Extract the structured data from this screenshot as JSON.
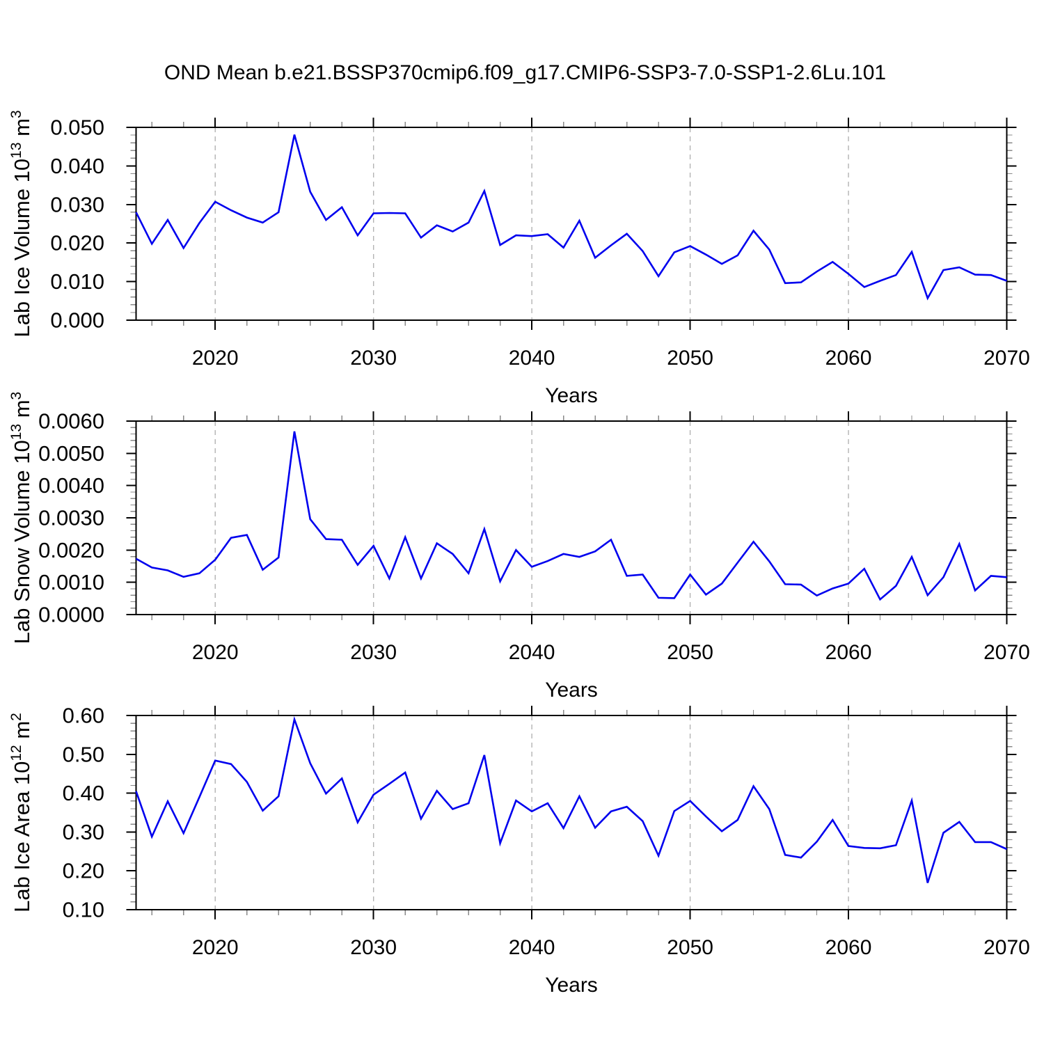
{
  "title": "OND Mean b.e21.BSSP370cmip6.f09_g17.CMIP6-SSP3-7.0-SSP1-2.6Lu.101",
  "colors": {
    "line": "#0000ee",
    "grid": "#b3b3b3",
    "axis": "#000000",
    "minor_tick": "#888888"
  },
  "chart_data": [
    {
      "type": "line",
      "name": "lab-ice-volume",
      "ylabel": "Lab Ice Volume 10^13 m^3",
      "ylabel_parts": [
        {
          "t": "Lab Ice Volume 10"
        },
        {
          "t": "13",
          "sup": true
        },
        {
          "t": " m"
        },
        {
          "t": "3",
          "sup": true
        }
      ],
      "xlabel": "Years",
      "x_range": [
        2015,
        2070
      ],
      "x_step": 1,
      "x_major_ticks": [
        2020,
        2030,
        2040,
        2050,
        2060,
        2070
      ],
      "x_minor_step": 2,
      "x_gridlines": [
        2020,
        2030,
        2040,
        2050,
        2060
      ],
      "ylim": [
        0.0,
        0.05
      ],
      "y_major_ticks": [
        0.0,
        0.01,
        0.02,
        0.03,
        0.04,
        0.05
      ],
      "y_tick_labels": [
        "0.000",
        "0.010",
        "0.020",
        "0.030",
        "0.040",
        "0.050"
      ],
      "y_minor_step": 0.002,
      "values": [
        0.028,
        0.0198,
        0.026,
        0.0187,
        0.0252,
        0.0307,
        0.0285,
        0.0266,
        0.0253,
        0.028,
        0.0481,
        0.0333,
        0.026,
        0.0293,
        0.022,
        0.0277,
        0.0278,
        0.0277,
        0.0214,
        0.0246,
        0.023,
        0.0253,
        0.0335,
        0.0195,
        0.022,
        0.0218,
        0.0223,
        0.0188,
        0.0258,
        0.0162,
        0.0194,
        0.0224,
        0.0179,
        0.0114,
        0.0176,
        0.0192,
        0.017,
        0.0146,
        0.0168,
        0.0232,
        0.0183,
        0.0096,
        0.0098,
        0.0126,
        0.0151,
        0.012,
        0.0086,
        0.0102,
        0.0117,
        0.0177,
        0.0057,
        0.013,
        0.0137,
        0.0118,
        0.0117,
        0.0102
      ]
    },
    {
      "type": "line",
      "name": "lab-snow-volume",
      "ylabel": "Lab Snow Volume 10^13 m^3",
      "ylabel_parts": [
        {
          "t": "Lab Snow Volume 10"
        },
        {
          "t": "13",
          "sup": true
        },
        {
          "t": " m"
        },
        {
          "t": "3",
          "sup": true
        }
      ],
      "xlabel": "Years",
      "x_range": [
        2015,
        2070
      ],
      "x_step": 1,
      "x_major_ticks": [
        2020,
        2030,
        2040,
        2050,
        2060,
        2070
      ],
      "x_minor_step": 2,
      "x_gridlines": [
        2020,
        2030,
        2040,
        2050,
        2060
      ],
      "ylim": [
        0.0,
        0.006
      ],
      "y_major_ticks": [
        0.0,
        0.001,
        0.002,
        0.003,
        0.004,
        0.005,
        0.006
      ],
      "y_tick_labels": [
        "0.0000",
        "0.0010",
        "0.0020",
        "0.0030",
        "0.0040",
        "0.0050",
        "0.0060"
      ],
      "y_minor_step": 0.0002,
      "values": [
        0.00173,
        0.00146,
        0.00137,
        0.00117,
        0.00128,
        0.0017,
        0.00238,
        0.00247,
        0.00139,
        0.00177,
        0.00568,
        0.00296,
        0.00234,
        0.00232,
        0.00154,
        0.00213,
        0.00112,
        0.0024,
        0.00112,
        0.00221,
        0.00188,
        0.00128,
        0.00265,
        0.00103,
        0.002,
        0.00148,
        0.00166,
        0.00188,
        0.00179,
        0.00196,
        0.00232,
        0.0012,
        0.00124,
        0.00052,
        0.00051,
        0.00124,
        0.00062,
        0.00096,
        0.00161,
        0.00226,
        0.00165,
        0.00094,
        0.00093,
        0.00059,
        0.00081,
        0.00096,
        0.00142,
        0.00047,
        0.00089,
        0.00179,
        0.0006,
        0.00116,
        0.00219,
        0.00075,
        0.0012,
        0.00116
      ]
    },
    {
      "type": "line",
      "name": "lab-ice-area",
      "ylabel": "Lab Ice Area 10^12 m^2",
      "ylabel_parts": [
        {
          "t": "Lab Ice Area 10"
        },
        {
          "t": "12",
          "sup": true
        },
        {
          "t": " m"
        },
        {
          "t": "2",
          "sup": true
        }
      ],
      "xlabel": "Years",
      "x_range": [
        2015,
        2070
      ],
      "x_step": 1,
      "x_major_ticks": [
        2020,
        2030,
        2040,
        2050,
        2060,
        2070
      ],
      "x_minor_step": 2,
      "x_gridlines": [
        2020,
        2030,
        2040,
        2050,
        2060
      ],
      "ylim": [
        0.1,
        0.6
      ],
      "y_major_ticks": [
        0.1,
        0.2,
        0.3,
        0.4,
        0.5,
        0.6
      ],
      "y_tick_labels": [
        "0.10",
        "0.20",
        "0.30",
        "0.40",
        "0.50",
        "0.60"
      ],
      "y_minor_step": 0.02,
      "values": [
        0.405,
        0.288,
        0.379,
        0.297,
        0.39,
        0.484,
        0.475,
        0.429,
        0.355,
        0.392,
        0.59,
        0.477,
        0.399,
        0.438,
        0.325,
        0.396,
        0.424,
        0.453,
        0.334,
        0.406,
        0.359,
        0.374,
        0.498,
        0.271,
        0.381,
        0.353,
        0.374,
        0.31,
        0.392,
        0.311,
        0.353,
        0.365,
        0.328,
        0.239,
        0.354,
        0.38,
        0.34,
        0.302,
        0.331,
        0.418,
        0.359,
        0.241,
        0.234,
        0.275,
        0.331,
        0.264,
        0.259,
        0.258,
        0.266,
        0.381,
        0.169,
        0.298,
        0.326,
        0.274,
        0.274,
        0.256
      ]
    }
  ]
}
